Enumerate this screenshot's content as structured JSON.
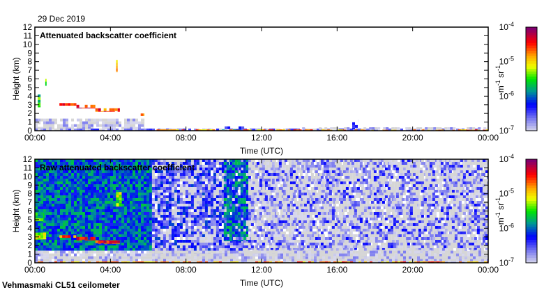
{
  "date": "29 Dec 2019",
  "footer": "Vehmasmaki CL51 ceilometer",
  "chart_data": [
    {
      "type": "heatmap",
      "title": "Attenuated backscatter coefficient",
      "xlabel": "Time (UTC)",
      "ylabel": "Height (km)",
      "xlim": [
        0,
        24
      ],
      "ylim": [
        0,
        12
      ],
      "xticks": [
        "00:00",
        "04:00",
        "08:00",
        "12:00",
        "16:00",
        "20:00",
        "00:00"
      ],
      "yticks": [
        "0",
        "1",
        "2",
        "3",
        "4",
        "5",
        "6",
        "7",
        "8",
        "9",
        "10",
        "11",
        "12"
      ],
      "colorbar": {
        "label_base": "m",
        "label_exp1": "-1",
        "label_mid": " sr",
        "label_exp2": "-1",
        "ticks": [
          {
            "base": "10",
            "exp": "-4"
          },
          {
            "base": "10",
            "exp": "-5"
          },
          {
            "base": "10",
            "exp": "-6"
          },
          {
            "base": "10",
            "exp": "-7"
          }
        ],
        "range_log10": [
          -7,
          -4
        ]
      },
      "regions": [
        {
          "t": [
            0,
            5.8
          ],
          "h": [
            0,
            1.4
          ],
          "level": -7.0,
          "density": 0.85
        },
        {
          "t": [
            0,
            24
          ],
          "h": [
            0,
            0.25
          ],
          "level": -6.7,
          "density": 0.8
        },
        {
          "t": [
            6,
            24
          ],
          "h": [
            0,
            0.15
          ],
          "level": -4.8,
          "density": 0.6
        },
        {
          "t": [
            9.9,
            11.5
          ],
          "h": [
            0.1,
            0.5
          ],
          "level": -6.2,
          "density": 0.5
        },
        {
          "t": [
            14,
            24
          ],
          "h": [
            0.1,
            0.4
          ],
          "level": -7.0,
          "density": 0.5
        },
        {
          "t": [
            16.8,
            17.1
          ],
          "h": [
            0.2,
            1.3
          ],
          "level": -6.5,
          "density": 0.6
        },
        {
          "t": [
            0.15,
            0.3
          ],
          "h": [
            2.7,
            4.2
          ],
          "level": -5.5,
          "density": 1
        },
        {
          "t": [
            0.55,
            0.62
          ],
          "h": [
            5.2,
            6.0
          ],
          "level": -5.3,
          "density": 1
        },
        {
          "t": [
            4.3,
            4.38
          ],
          "h": [
            6.8,
            8.2
          ],
          "level": -5.0,
          "density": 1
        },
        {
          "t": [
            1.3,
            2.2
          ],
          "h": [
            2.9,
            3.2
          ],
          "level": -4.6,
          "density": 0.9
        },
        {
          "t": [
            2.2,
            3.2
          ],
          "h": [
            2.6,
            3.0
          ],
          "level": -4.4,
          "density": 0.9
        },
        {
          "t": [
            3.2,
            4.5
          ],
          "h": [
            2.2,
            2.6
          ],
          "level": -4.6,
          "density": 0.9
        },
        {
          "t": [
            5.6,
            5.8
          ],
          "h": [
            1.7,
            2.0
          ],
          "level": -4.8,
          "density": 1
        }
      ]
    },
    {
      "type": "heatmap",
      "title": "Raw attenuated backscatter coefficient",
      "xlabel": "Time (UTC)",
      "ylabel": "Height (km)",
      "xlim": [
        0,
        24
      ],
      "ylim": [
        0,
        12
      ],
      "xticks": [
        "00:00",
        "04:00",
        "08:00",
        "12:00",
        "16:00",
        "20:00",
        "00:00"
      ],
      "yticks": [
        "0",
        "1",
        "2",
        "3",
        "4",
        "5",
        "6",
        "7",
        "8",
        "9",
        "10",
        "11",
        "12"
      ],
      "colorbar": {
        "label_base": "m",
        "label_exp1": "-1",
        "label_mid": " sr",
        "label_exp2": "-1",
        "ticks": [
          {
            "base": "10",
            "exp": "-4"
          },
          {
            "base": "10",
            "exp": "-5"
          },
          {
            "base": "10",
            "exp": "-6"
          },
          {
            "base": "10",
            "exp": "-7"
          }
        ],
        "range_log10": [
          -7,
          -4
        ]
      },
      "regions": [
        {
          "t": [
            6.2,
            24
          ],
          "h": [
            0,
            12
          ],
          "level": -7.0,
          "density": 0.9
        },
        {
          "t": [
            11,
            24
          ],
          "h": [
            1.5,
            12
          ],
          "level": -6.6,
          "density": 0.35
        },
        {
          "t": [
            6.2,
            11
          ],
          "h": [
            1.0,
            12
          ],
          "level": -6.4,
          "density": 0.55
        },
        {
          "t": [
            0,
            6.2
          ],
          "h": [
            1.4,
            12
          ],
          "level": -6.0,
          "density": 1
        },
        {
          "t": [
            10,
            11.3
          ],
          "h": [
            2.5,
            12
          ],
          "level": -6.0,
          "density": 0.8
        },
        {
          "t": [
            0,
            24
          ],
          "h": [
            0,
            1.4
          ],
          "level": -7.0,
          "density": 0.9
        },
        {
          "t": [
            0,
            24
          ],
          "h": [
            0,
            0.15
          ],
          "level": -4.8,
          "density": 0.6
        },
        {
          "t": [
            0,
            0.6
          ],
          "h": [
            2.7,
            3.5
          ],
          "level": -5.2,
          "density": 1
        },
        {
          "t": [
            0,
            0.5
          ],
          "h": [
            4.8,
            5.8
          ],
          "level": -5.6,
          "density": 0.8
        },
        {
          "t": [
            1.3,
            2.2
          ],
          "h": [
            2.9,
            3.2
          ],
          "level": -4.6,
          "density": 0.9
        },
        {
          "t": [
            2.2,
            3.2
          ],
          "h": [
            2.6,
            3.0
          ],
          "level": -4.4,
          "density": 0.9
        },
        {
          "t": [
            3.2,
            4.5
          ],
          "h": [
            2.2,
            2.6
          ],
          "level": -4.4,
          "density": 0.9
        },
        {
          "t": [
            4.3,
            4.6
          ],
          "h": [
            6.5,
            8.2
          ],
          "level": -5.3,
          "density": 0.8
        }
      ]
    }
  ]
}
